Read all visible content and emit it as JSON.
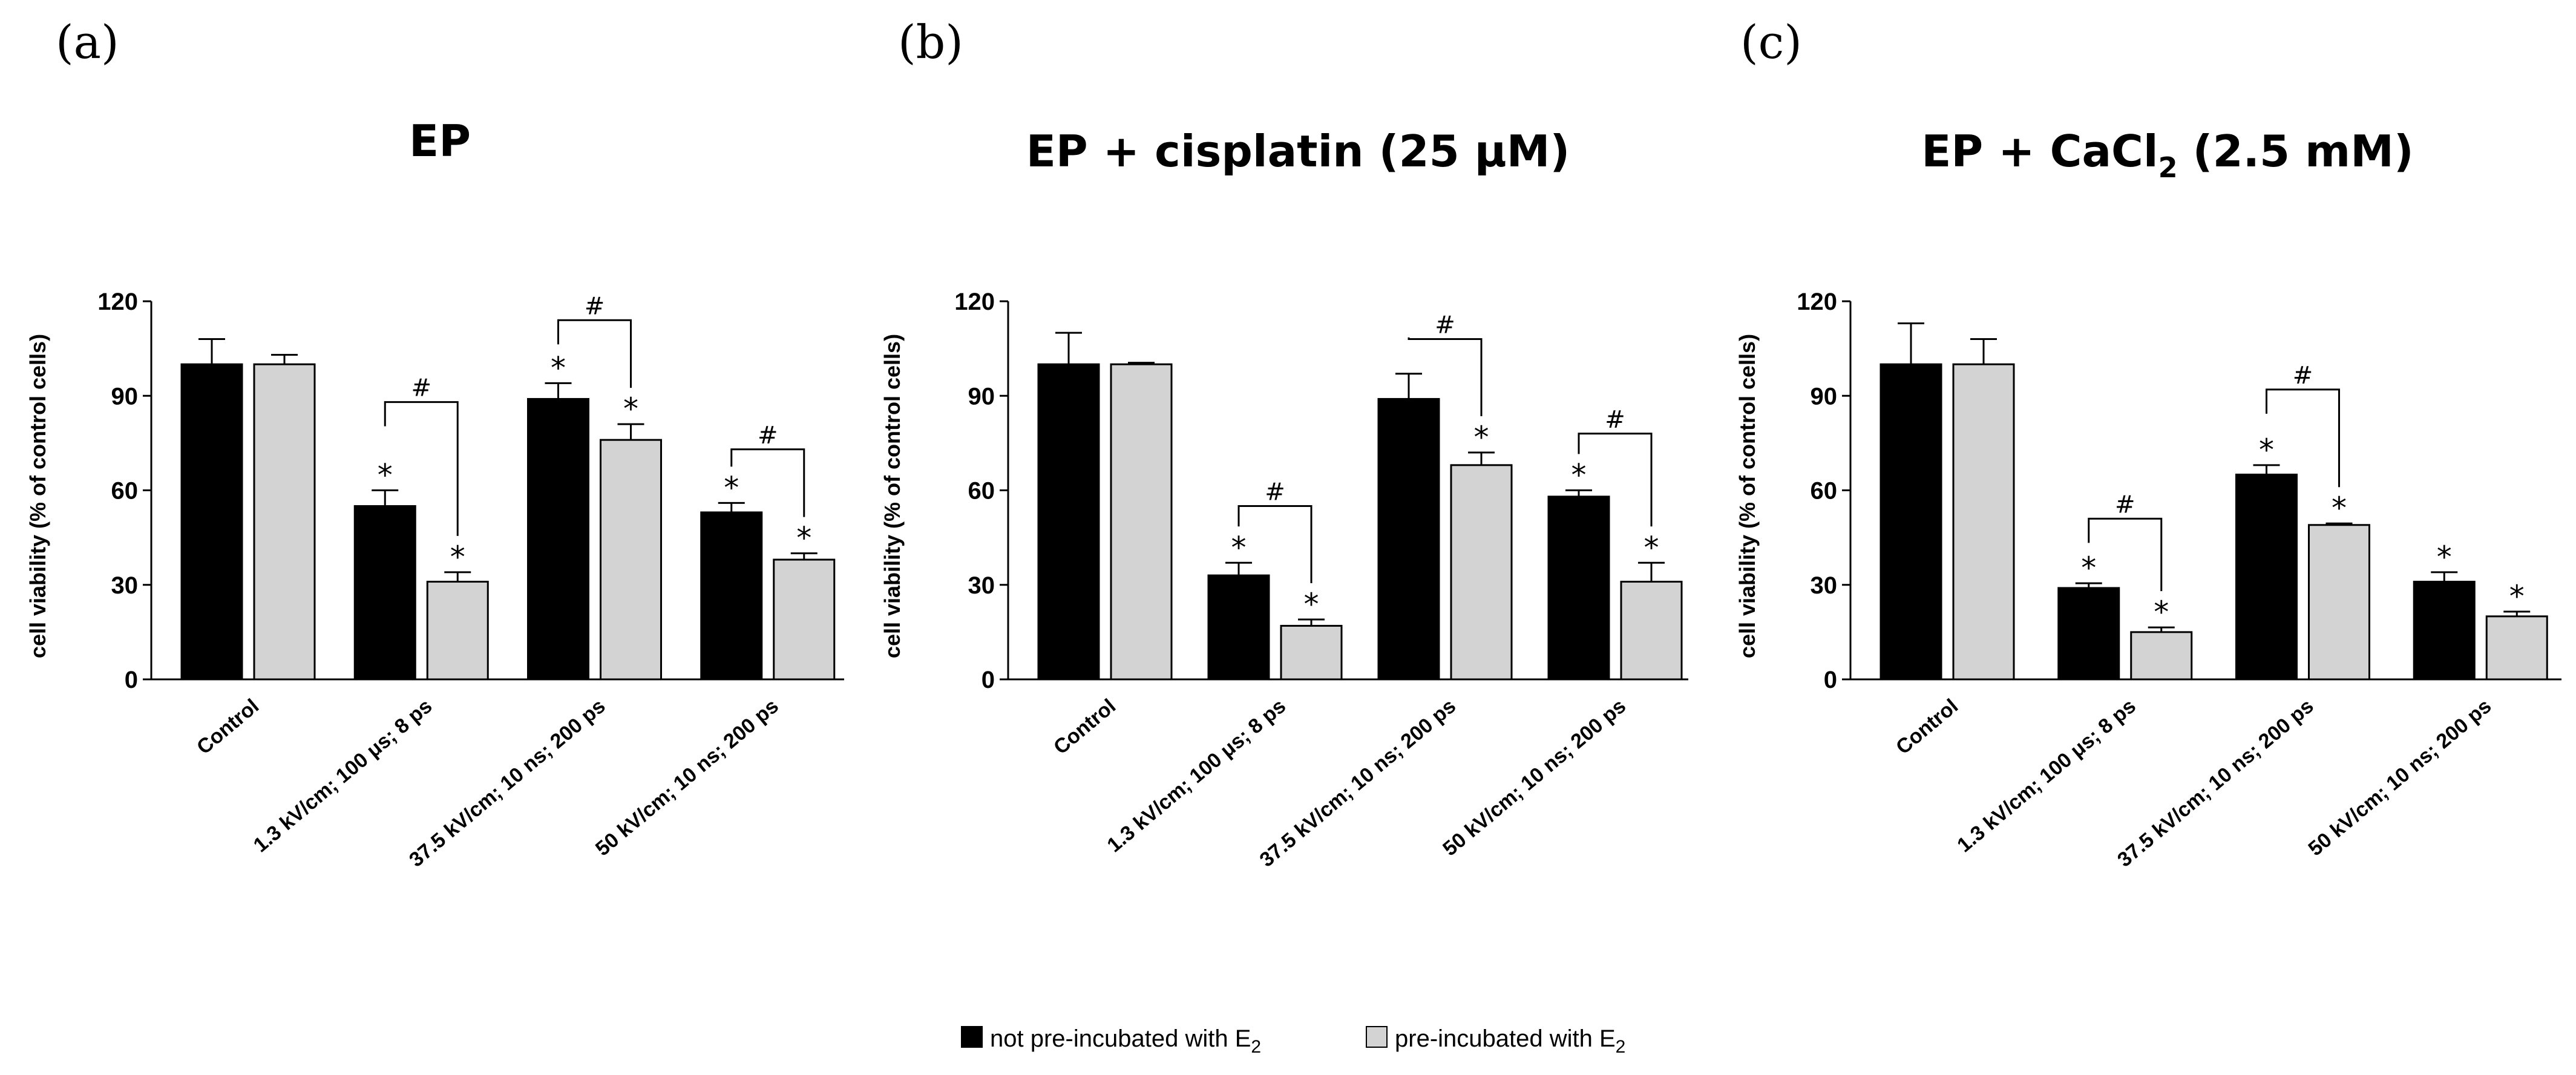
{
  "legend": {
    "series1": {
      "label": "not pre-incubated with E",
      "sub": "2",
      "color": "#000000"
    },
    "series2": {
      "label": "pre-incubated with E",
      "sub": "2",
      "color": "#d3d3d3"
    }
  },
  "chart_data": [
    {
      "type": "bar",
      "panel_label": "(a)",
      "title": "EP",
      "title_sub": "",
      "title_suffix": "",
      "ylabel": "cell viability (% of control cells)",
      "xlabel": "",
      "ylim": [
        0,
        120
      ],
      "yticks": [
        "0",
        "30",
        "60",
        "90",
        "120"
      ],
      "categories": [
        "Control",
        "1.3 kV/cm; 100 μs; 8 ps",
        "37.5 kV/cm; 10 ns; 200 ps",
        "50 kV/cm; 10 ns; 200 ps"
      ],
      "series": [
        {
          "name": "not pre-incubated with E2",
          "values": [
            100,
            55,
            89,
            53
          ],
          "errors": [
            8,
            5,
            5,
            3
          ],
          "stars": [
            false,
            true,
            true,
            true
          ]
        },
        {
          "name": "pre-incubated with E2",
          "values": [
            100,
            31,
            76,
            38
          ],
          "errors": [
            3,
            3,
            5,
            2
          ],
          "stars": [
            false,
            true,
            true,
            true
          ]
        }
      ],
      "brackets": [
        {
          "category": 1,
          "label": "#",
          "y": 88
        },
        {
          "category": 2,
          "label": "#",
          "y": 114
        },
        {
          "category": 3,
          "label": "#",
          "y": 73
        }
      ]
    },
    {
      "type": "bar",
      "panel_label": "(b)",
      "title": "EP + cisplatin (25 μM)",
      "title_sub": "",
      "title_suffix": "",
      "ylabel": "cell viability (% of control cells)",
      "xlabel": "",
      "ylim": [
        0,
        120
      ],
      "yticks": [
        "0",
        "30",
        "60",
        "90",
        "120"
      ],
      "categories": [
        "Control",
        "1.3 kV/cm; 100 μs; 8 ps",
        "37.5 kV/cm; 10 ns; 200 ps",
        "50 kV/cm; 10 ns; 200 ps"
      ],
      "series": [
        {
          "name": "not pre-incubated with E2",
          "values": [
            100,
            33,
            89,
            58
          ],
          "errors": [
            10,
            4,
            8,
            2
          ],
          "stars": [
            false,
            true,
            false,
            true
          ]
        },
        {
          "name": "pre-incubated with E2",
          "values": [
            100,
            17,
            68,
            31
          ],
          "errors": [
            0.5,
            2,
            4,
            6
          ],
          "stars": [
            false,
            true,
            true,
            true
          ]
        }
      ],
      "brackets": [
        {
          "category": 1,
          "label": "#",
          "y": 55
        },
        {
          "category": 2,
          "label": "#",
          "y": 108
        },
        {
          "category": 3,
          "label": "#",
          "y": 78
        }
      ]
    },
    {
      "type": "bar",
      "panel_label": "(c)",
      "title": "EP + CaCl",
      "title_sub": "2",
      "title_suffix": " (2.5 mM)",
      "ylabel": "cell viability (% of control cells)",
      "xlabel": "",
      "ylim": [
        0,
        120
      ],
      "yticks": [
        "0",
        "30",
        "60",
        "90",
        "120"
      ],
      "categories": [
        "Control",
        "1.3 kV/cm; 100 μs; 8 ps",
        "37.5 kV/cm; 10 ns; 200 ps",
        "50 kV/cm; 10 ns; 200 ps"
      ],
      "series": [
        {
          "name": "not pre-incubated with E2",
          "values": [
            100,
            29,
            65,
            31
          ],
          "errors": [
            13,
            1.5,
            3,
            3
          ],
          "stars": [
            false,
            true,
            true,
            true
          ]
        },
        {
          "name": "pre-incubated with E2",
          "values": [
            100,
            15,
            49,
            20
          ],
          "errors": [
            8,
            1.5,
            0.5,
            1.5
          ],
          "stars": [
            false,
            true,
            true,
            true
          ]
        }
      ],
      "brackets": [
        {
          "category": 1,
          "label": "#",
          "y": 51
        },
        {
          "category": 2,
          "label": "#",
          "y": 92
        }
      ]
    }
  ]
}
